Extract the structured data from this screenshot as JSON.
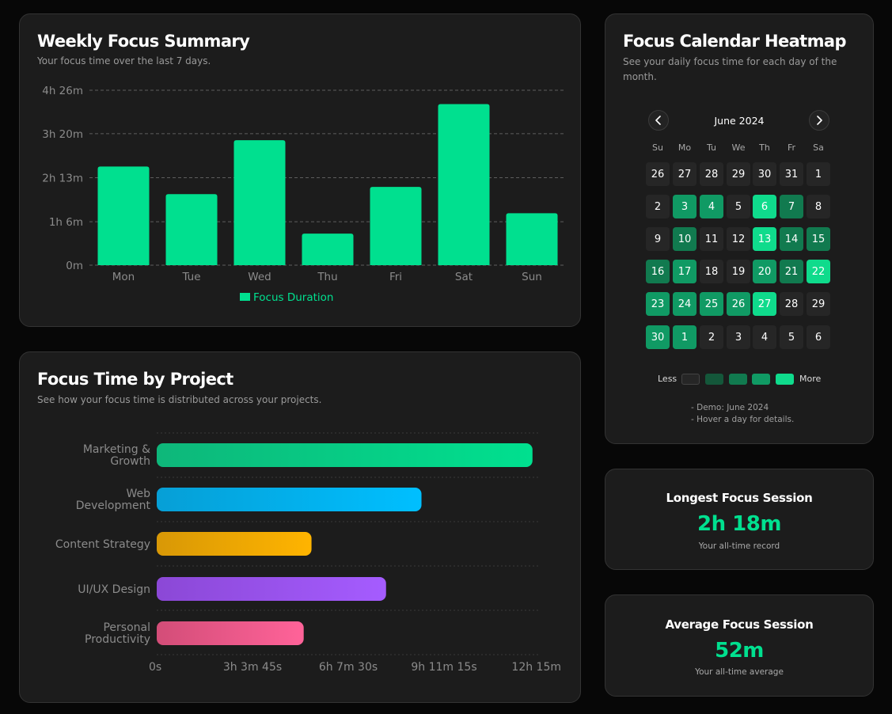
{
  "colors": {
    "accent": "#00e08f",
    "heat_levels": [
      "#262626",
      "#14573a",
      "#117a4f",
      "#109a64",
      "#0fdb8c"
    ]
  },
  "weekly": {
    "title": "Weekly Focus Summary",
    "subtitle": "Your focus time over the last 7 days."
  },
  "projects": {
    "title": "Focus Time by Project",
    "subtitle": "See how your focus time is distributed across your projects."
  },
  "calendar": {
    "title": "Focus Calendar Heatmap",
    "subtitle": "See your daily focus time for each day of the month.",
    "month_label": "June 2024",
    "weekdays": [
      "Su",
      "Mo",
      "Tu",
      "We",
      "Th",
      "Fr",
      "Sa"
    ],
    "days": [
      {
        "d": "26",
        "lvl": 0
      },
      {
        "d": "27",
        "lvl": 0
      },
      {
        "d": "28",
        "lvl": 0
      },
      {
        "d": "29",
        "lvl": 0
      },
      {
        "d": "30",
        "lvl": 0
      },
      {
        "d": "31",
        "lvl": 0
      },
      {
        "d": "1",
        "lvl": 0
      },
      {
        "d": "2",
        "lvl": 0
      },
      {
        "d": "3",
        "lvl": 3
      },
      {
        "d": "4",
        "lvl": 3
      },
      {
        "d": "5",
        "lvl": 0
      },
      {
        "d": "6",
        "lvl": 4
      },
      {
        "d": "7",
        "lvl": 2
      },
      {
        "d": "8",
        "lvl": 0
      },
      {
        "d": "9",
        "lvl": 0
      },
      {
        "d": "10",
        "lvl": 2
      },
      {
        "d": "11",
        "lvl": 0
      },
      {
        "d": "12",
        "lvl": 0
      },
      {
        "d": "13",
        "lvl": 4
      },
      {
        "d": "14",
        "lvl": 2
      },
      {
        "d": "15",
        "lvl": 2
      },
      {
        "d": "16",
        "lvl": 2
      },
      {
        "d": "17",
        "lvl": 3
      },
      {
        "d": "18",
        "lvl": 0
      },
      {
        "d": "19",
        "lvl": 0
      },
      {
        "d": "20",
        "lvl": 3
      },
      {
        "d": "21",
        "lvl": 2
      },
      {
        "d": "22",
        "lvl": 4
      },
      {
        "d": "23",
        "lvl": 3
      },
      {
        "d": "24",
        "lvl": 3
      },
      {
        "d": "25",
        "lvl": 3
      },
      {
        "d": "26",
        "lvl": 3
      },
      {
        "d": "27",
        "lvl": 4
      },
      {
        "d": "28",
        "lvl": 0
      },
      {
        "d": "29",
        "lvl": 0
      },
      {
        "d": "30",
        "lvl": 3
      },
      {
        "d": "1",
        "lvl": 3
      },
      {
        "d": "2",
        "lvl": 0
      },
      {
        "d": "3",
        "lvl": 0
      },
      {
        "d": "4",
        "lvl": 0
      },
      {
        "d": "5",
        "lvl": 0
      },
      {
        "d": "6",
        "lvl": 0
      }
    ],
    "legend_less": "Less",
    "legend_more": "More",
    "note_line1": "- Demo: June 2024",
    "note_line2": "- Hover a day for details."
  },
  "longest": {
    "title": "Longest Focus Session",
    "value": "2h 18m",
    "subtitle": "Your all-time record"
  },
  "average": {
    "title": "Average Focus Session",
    "value": "52m",
    "subtitle": "Your all-time average"
  },
  "chart_data": [
    {
      "type": "bar",
      "title": "Weekly Focus Summary",
      "categories": [
        "Mon",
        "Tue",
        "Wed",
        "Thu",
        "Fri",
        "Sat",
        "Sun"
      ],
      "series": [
        {
          "name": "Focus Duration",
          "values_minutes": [
            150,
            108,
            190,
            48,
            119,
            245,
            79
          ],
          "color": "#00e08f"
        }
      ],
      "y_ticks": [
        "0m",
        "1h 6m",
        "2h 13m",
        "3h 20m",
        "4h 26m"
      ],
      "y_tick_values_minutes": [
        0,
        66,
        133,
        200,
        266
      ],
      "ylim_minutes": [
        0,
        266
      ],
      "grid": "horizontal dashed",
      "legend": "bottom-center"
    },
    {
      "type": "bar",
      "orientation": "horizontal",
      "title": "Focus Time by Project",
      "categories": [
        [
          "Marketing &",
          "Growth"
        ],
        [
          "Web",
          "Development"
        ],
        [
          "Content Strategy"
        ],
        [
          "UI/UX Design"
        ],
        [
          "Personal",
          "Productivity"
        ]
      ],
      "values_minutes": [
        721,
        508,
        297,
        440,
        282
      ],
      "colors": [
        [
          "#0eb77a",
          "#00e08f"
        ],
        [
          "#069fd6",
          "#00bfff"
        ],
        [
          "#d89806",
          "#ffb400"
        ],
        [
          "#8b48d6",
          "#a55cff"
        ],
        [
          "#d34d78",
          "#ff6399"
        ]
      ],
      "x_ticks": [
        "0s",
        "3h 3m 45s",
        "6h 7m 30s",
        "9h 11m 15s",
        "12h 15m"
      ],
      "x_tick_values_minutes": [
        0,
        183.75,
        367.5,
        551.25,
        735
      ],
      "xlim_minutes": [
        0,
        735
      ],
      "grid": "horizontal dotted"
    }
  ]
}
